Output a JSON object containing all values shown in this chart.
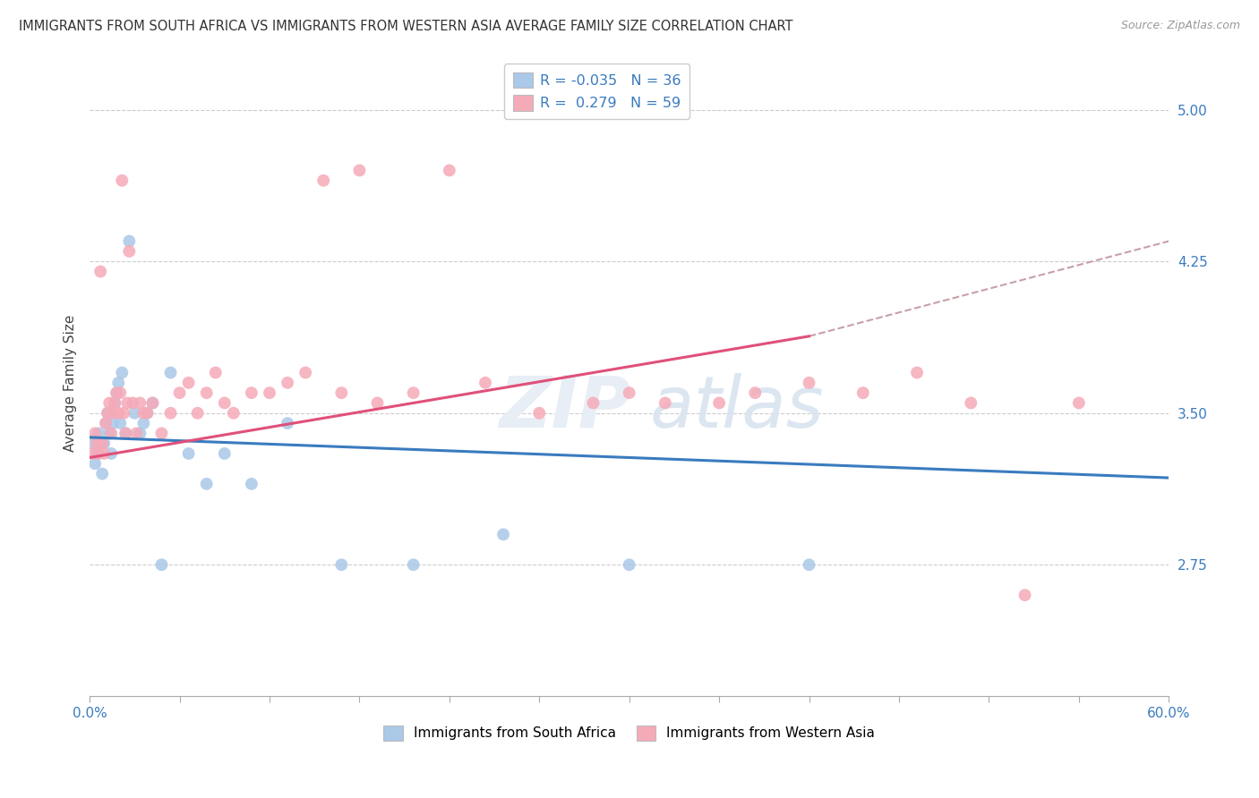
{
  "title": "IMMIGRANTS FROM SOUTH AFRICA VS IMMIGRANTS FROM WESTERN ASIA AVERAGE FAMILY SIZE CORRELATION CHART",
  "source": "Source: ZipAtlas.com",
  "ylabel": "Average Family Size",
  "yticks_right": [
    2.75,
    3.5,
    4.25,
    5.0
  ],
  "xlim": [
    0.0,
    60.0
  ],
  "ylim": [
    2.1,
    5.2
  ],
  "legend1_label": "Immigrants from South Africa",
  "legend2_label": "Immigrants from Western Asia",
  "R1": -0.035,
  "N1": 36,
  "R2": 0.279,
  "N2": 59,
  "color1": "#aac8e8",
  "color2": "#f5aab8",
  "line_color1": "#3a7bbf",
  "line_color2": "#e0507a",
  "sa_trend": [
    3.38,
    3.18
  ],
  "wa_trend_solid": [
    3.28,
    3.88
  ],
  "wa_trend_dashed_end": 4.35,
  "south_africa_x": [
    0.2,
    0.3,
    0.4,
    0.5,
    0.6,
    0.7,
    0.8,
    0.9,
    1.0,
    1.1,
    1.2,
    1.3,
    1.4,
    1.5,
    1.6,
    1.7,
    1.8,
    2.0,
    2.2,
    2.5,
    3.0,
    3.5,
    4.5,
    5.5,
    6.5,
    7.5,
    9.0,
    11.0,
    14.0,
    18.0,
    23.0,
    30.0,
    40.0,
    2.8,
    3.2,
    4.0
  ],
  "south_africa_y": [
    3.35,
    3.25,
    3.3,
    3.4,
    3.35,
    3.2,
    3.35,
    3.45,
    3.5,
    3.4,
    3.3,
    3.45,
    3.55,
    3.6,
    3.65,
    3.45,
    3.7,
    3.4,
    4.35,
    3.5,
    3.45,
    3.55,
    3.7,
    3.3,
    3.15,
    3.3,
    3.15,
    3.45,
    2.75,
    2.75,
    2.9,
    2.75,
    2.75,
    3.4,
    3.5,
    2.75
  ],
  "western_asia_x": [
    0.2,
    0.3,
    0.4,
    0.5,
    0.6,
    0.7,
    0.8,
    0.9,
    1.0,
    1.1,
    1.2,
    1.3,
    1.4,
    1.5,
    1.6,
    1.7,
    1.8,
    1.9,
    2.0,
    2.1,
    2.2,
    2.4,
    2.6,
    2.8,
    3.0,
    3.2,
    3.5,
    4.0,
    4.5,
    5.0,
    5.5,
    6.0,
    6.5,
    7.0,
    7.5,
    8.0,
    9.0,
    10.0,
    11.0,
    12.0,
    13.0,
    14.0,
    15.0,
    16.0,
    18.0,
    20.0,
    22.0,
    25.0,
    28.0,
    30.0,
    32.0,
    35.0,
    37.0,
    40.0,
    43.0,
    46.0,
    49.0,
    52.0,
    55.0
  ],
  "western_asia_y": [
    3.3,
    3.4,
    3.35,
    3.3,
    4.2,
    3.35,
    3.3,
    3.45,
    3.5,
    3.55,
    3.4,
    3.5,
    3.55,
    3.6,
    3.5,
    3.6,
    4.65,
    3.5,
    3.4,
    3.55,
    4.3,
    3.55,
    3.4,
    3.55,
    3.5,
    3.5,
    3.55,
    3.4,
    3.5,
    3.6,
    3.65,
    3.5,
    3.6,
    3.7,
    3.55,
    3.5,
    3.6,
    3.6,
    3.65,
    3.7,
    4.65,
    3.6,
    4.7,
    3.55,
    3.6,
    4.7,
    3.65,
    3.5,
    3.55,
    3.6,
    3.55,
    3.55,
    3.6,
    3.65,
    3.6,
    3.7,
    3.55,
    2.6,
    3.55
  ]
}
